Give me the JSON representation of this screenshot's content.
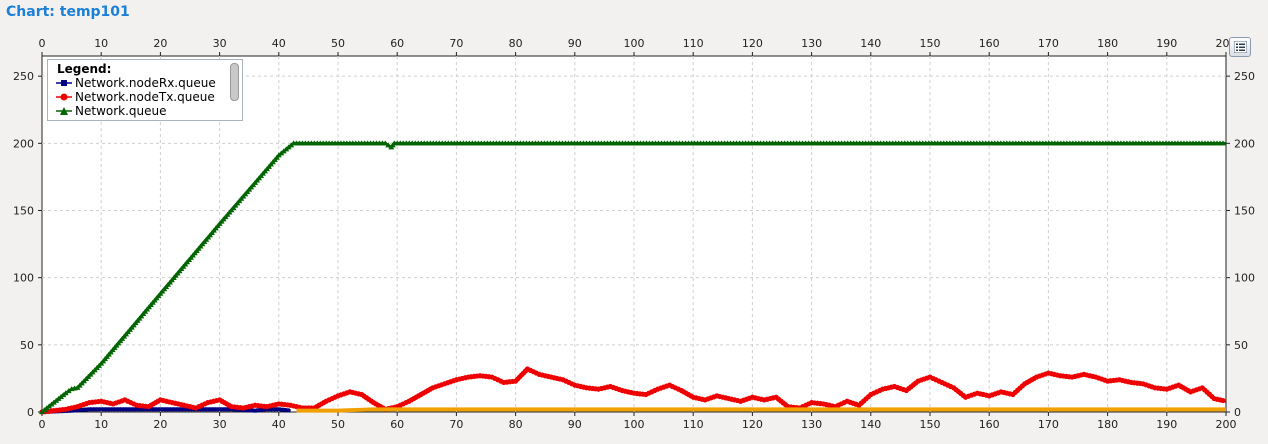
{
  "title": "Chart: temp101",
  "legend": {
    "title": "Legend:",
    "position": "top-left",
    "items": [
      {
        "label": "Network.nodeRx.queue",
        "color": "#000080",
        "marker": "square"
      },
      {
        "label": "Network.nodeTx.queue",
        "color": "#ee0000",
        "marker": "circle"
      },
      {
        "label": "Network.queue",
        "color": "#006400",
        "marker": "triangle"
      }
    ]
  },
  "chart_data": {
    "type": "line",
    "title": "temp101",
    "xlim": [
      0,
      200
    ],
    "ylim": [
      0,
      265
    ],
    "x_ticks": [
      0,
      10,
      20,
      30,
      40,
      50,
      60,
      70,
      80,
      90,
      100,
      110,
      120,
      130,
      140,
      150,
      160,
      170,
      180,
      190,
      200
    ],
    "y_ticks": [
      0,
      50,
      100,
      150,
      200,
      250
    ],
    "grid": true,
    "series": [
      {
        "name": "Network.nodeRx.queue",
        "color": "#000080",
        "points": [
          [
            0,
            0
          ],
          [
            5,
            1
          ],
          [
            8,
            2
          ],
          [
            12,
            2
          ],
          [
            16,
            2
          ],
          [
            20,
            2
          ],
          [
            24,
            2
          ],
          [
            28,
            2
          ],
          [
            32,
            2
          ],
          [
            36,
            1
          ],
          [
            38,
            2
          ],
          [
            40,
            2
          ],
          [
            42,
            1
          ]
        ]
      },
      {
        "name": "Network.nodeTx.queue",
        "color": "#ee0000",
        "points": [
          [
            0,
            0
          ],
          [
            2,
            1
          ],
          [
            4,
            2
          ],
          [
            6,
            4
          ],
          [
            8,
            7
          ],
          [
            10,
            8
          ],
          [
            12,
            6
          ],
          [
            14,
            9
          ],
          [
            16,
            5
          ],
          [
            18,
            4
          ],
          [
            20,
            9
          ],
          [
            22,
            7
          ],
          [
            24,
            5
          ],
          [
            26,
            3
          ],
          [
            28,
            7
          ],
          [
            30,
            9
          ],
          [
            32,
            4
          ],
          [
            34,
            3
          ],
          [
            36,
            5
          ],
          [
            38,
            4
          ],
          [
            40,
            6
          ],
          [
            42,
            5
          ],
          [
            44,
            3
          ],
          [
            46,
            3
          ],
          [
            48,
            8
          ],
          [
            50,
            12
          ],
          [
            52,
            15
          ],
          [
            54,
            13
          ],
          [
            56,
            7
          ],
          [
            58,
            2
          ],
          [
            60,
            4
          ],
          [
            62,
            8
          ],
          [
            64,
            13
          ],
          [
            66,
            18
          ],
          [
            68,
            21
          ],
          [
            70,
            24
          ],
          [
            72,
            26
          ],
          [
            74,
            27
          ],
          [
            76,
            26
          ],
          [
            78,
            22
          ],
          [
            80,
            23
          ],
          [
            82,
            32
          ],
          [
            84,
            28
          ],
          [
            86,
            26
          ],
          [
            88,
            24
          ],
          [
            90,
            20
          ],
          [
            92,
            18
          ],
          [
            94,
            17
          ],
          [
            96,
            19
          ],
          [
            98,
            16
          ],
          [
            100,
            14
          ],
          [
            102,
            13
          ],
          [
            104,
            17
          ],
          [
            106,
            20
          ],
          [
            108,
            16
          ],
          [
            110,
            11
          ],
          [
            112,
            9
          ],
          [
            114,
            12
          ],
          [
            116,
            10
          ],
          [
            118,
            8
          ],
          [
            120,
            11
          ],
          [
            122,
            9
          ],
          [
            124,
            11
          ],
          [
            126,
            4
          ],
          [
            128,
            3
          ],
          [
            130,
            7
          ],
          [
            132,
            6
          ],
          [
            134,
            4
          ],
          [
            136,
            8
          ],
          [
            138,
            5
          ],
          [
            140,
            13
          ],
          [
            142,
            17
          ],
          [
            144,
            19
          ],
          [
            146,
            16
          ],
          [
            148,
            23
          ],
          [
            150,
            26
          ],
          [
            152,
            22
          ],
          [
            154,
            18
          ],
          [
            156,
            11
          ],
          [
            158,
            14
          ],
          [
            160,
            12
          ],
          [
            162,
            15
          ],
          [
            164,
            13
          ],
          [
            166,
            21
          ],
          [
            168,
            26
          ],
          [
            170,
            29
          ],
          [
            172,
            27
          ],
          [
            174,
            26
          ],
          [
            176,
            28
          ],
          [
            178,
            26
          ],
          [
            180,
            23
          ],
          [
            182,
            24
          ],
          [
            184,
            22
          ],
          [
            186,
            21
          ],
          [
            188,
            18
          ],
          [
            190,
            17
          ],
          [
            192,
            20
          ],
          [
            194,
            15
          ],
          [
            196,
            18
          ],
          [
            198,
            10
          ],
          [
            200,
            8
          ]
        ]
      },
      {
        "name": "(unlabeled)",
        "color": "#f0a000",
        "points": [
          [
            43,
            1
          ],
          [
            50,
            1
          ],
          [
            56,
            2
          ],
          [
            62,
            2
          ],
          [
            70,
            2
          ],
          [
            80,
            2
          ],
          [
            90,
            2
          ],
          [
            100,
            2
          ],
          [
            110,
            2
          ],
          [
            120,
            2
          ],
          [
            130,
            2
          ],
          [
            140,
            2
          ],
          [
            150,
            2
          ],
          [
            160,
            2
          ],
          [
            170,
            2
          ],
          [
            180,
            2
          ],
          [
            190,
            2
          ],
          [
            200,
            2
          ]
        ]
      },
      {
        "name": "Network.queue",
        "color": "#006400",
        "points": [
          [
            0,
            0
          ],
          [
            4,
            14
          ],
          [
            5,
            17
          ],
          [
            6,
            18
          ],
          [
            10,
            36
          ],
          [
            20,
            88
          ],
          [
            30,
            140
          ],
          [
            40,
            191
          ],
          [
            42.5,
            200
          ],
          [
            58,
            200
          ],
          [
            59,
            197
          ],
          [
            59.5,
            200
          ],
          [
            200,
            200
          ]
        ]
      }
    ]
  }
}
